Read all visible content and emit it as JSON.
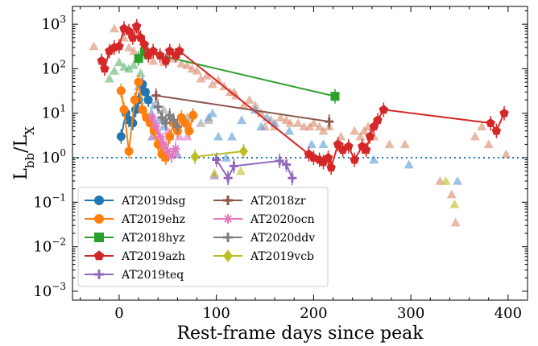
{
  "chart_data": {
    "type": "scatter",
    "xlabel": "Rest-frame days since peak",
    "ylabel_main": "L",
    "ylabel_sub": "bb",
    "ylabel_main2": "/L",
    "ylabel_sub2": "X",
    "xlim": [
      -48,
      420
    ],
    "ylim_log10": [
      -3.2,
      3.4
    ],
    "log_y": true,
    "grid": false,
    "legend_position": "lower-left",
    "x_ticks": [
      0,
      100,
      200,
      300,
      400
    ],
    "x_tick_labels": [
      "0",
      "100",
      "200",
      "300",
      "400"
    ],
    "y_tick_exponents": [
      -3,
      -2,
      -1,
      0,
      1,
      2,
      3
    ],
    "y_tick_base": "10",
    "y_tick_labels_exp": [
      "−3",
      "−2",
      "−1",
      "0",
      "1",
      "2",
      "3"
    ],
    "reference_line": {
      "y": 1,
      "style": "dotted",
      "color": "#1f77b4"
    },
    "series": [
      {
        "name": "AT2019dsg",
        "color": "#1f77b4",
        "marker": "circle",
        "x": [
          2,
          7,
          10,
          14,
          17,
          20,
          24,
          27,
          30
        ],
        "y": [
          3,
          10,
          7,
          6,
          12,
          20,
          45,
          30,
          20
        ]
      },
      {
        "name": "AT2019ehz",
        "color": "#ff7f0e",
        "marker": "circle",
        "x": [
          2,
          5,
          10,
          16,
          20,
          24,
          28,
          32,
          36,
          40,
          44,
          48,
          52,
          56,
          60,
          64,
          68,
          72,
          76
        ],
        "y": [
          32,
          12,
          1.4,
          20,
          50,
          12,
          8,
          6,
          4,
          2,
          1.2,
          1.0,
          3,
          6,
          4,
          8,
          6,
          4,
          9
        ]
      },
      {
        "name": "AT2018hyz",
        "color": "#2ca02c",
        "marker": "square",
        "x": [
          20,
          26,
          222
        ],
        "y": [
          170,
          240,
          24
        ]
      },
      {
        "name": "AT2019azh",
        "color": "#d62728",
        "marker": "pentagon",
        "x": [
          -18,
          -15,
          -10,
          -5,
          0,
          5,
          10,
          14,
          18,
          22,
          26,
          30,
          35,
          42,
          48,
          52,
          58,
          62,
          195,
          200,
          206,
          210,
          215,
          218,
          225,
          230,
          236,
          242,
          250,
          254,
          258,
          262,
          266,
          272,
          382,
          388,
          396
        ],
        "y": [
          150,
          100,
          250,
          300,
          320,
          800,
          700,
          500,
          900,
          500,
          350,
          200,
          250,
          200,
          150,
          250,
          200,
          250,
          1.2,
          1.0,
          0.9,
          0.8,
          1.0,
          0.6,
          2.0,
          1.5,
          1.8,
          0.9,
          1.8,
          1.5,
          3.0,
          5.0,
          7.0,
          12.0,
          6.0,
          4.0,
          10.0
        ]
      },
      {
        "name": "AT2019teq",
        "color": "#9467bd",
        "marker": "plus",
        "x": [
          100,
          112,
          118,
          165,
          172,
          178
        ],
        "y": [
          0.9,
          0.35,
          0.65,
          0.85,
          0.7,
          0.35
        ]
      },
      {
        "name": "AT2018zr",
        "color": "#8c564b",
        "marker": "plus",
        "x": [
          38,
          216
        ],
        "y": [
          25,
          6.5
        ]
      },
      {
        "name": "AT2020ocn",
        "color": "#e377c2",
        "marker": "asterisk",
        "x": [
          34,
          38,
          42,
          46,
          50,
          54,
          58
        ],
        "y": [
          8,
          5,
          3,
          2,
          1.4,
          1.1,
          1.6
        ]
      },
      {
        "name": "AT2020ddv",
        "color": "#7f7f7f",
        "marker": "plus",
        "x": [
          40,
          44,
          48,
          52,
          56,
          60
        ],
        "y": [
          14,
          8,
          6,
          9,
          7,
          5
        ]
      },
      {
        "name": "AT2019vcb",
        "color": "#bcbd22",
        "marker": "diamond",
        "x": [
          78,
          128
        ],
        "y": [
          1.05,
          1.4
        ]
      }
    ],
    "upper_limits": [
      {
        "color": "#d98b6a",
        "x": [
          -26,
          -5,
          5,
          10,
          15,
          20,
          25,
          30,
          35,
          46,
          56,
          64,
          70,
          75,
          80,
          84,
          90,
          96,
          102,
          108,
          114,
          118,
          120,
          128,
          134,
          140,
          146,
          150,
          156,
          160,
          166,
          172,
          176,
          184,
          190,
          196,
          200,
          206,
          210,
          216,
          228,
          242,
          248,
          252,
          256,
          262,
          278,
          294,
          330,
          342,
          346,
          366,
          373,
          380,
          398
        ],
        "y": [
          320,
          800,
          500,
          300,
          250,
          600,
          400,
          200,
          150,
          140,
          170,
          130,
          120,
          100,
          90,
          60,
          70,
          45,
          55,
          40,
          30,
          30,
          25,
          15,
          20,
          15,
          10,
          5,
          7,
          5,
          8,
          7,
          6,
          6,
          5,
          5,
          6,
          5,
          4,
          5,
          3,
          4,
          3,
          4,
          5,
          3,
          2,
          2,
          0.3,
          0.15,
          0.035,
          3,
          5,
          2,
          1.2
        ]
      },
      {
        "color": "#5a9bd5",
        "x": [
          20,
          25,
          30,
          33,
          36,
          41,
          46,
          52,
          92,
          96,
          102,
          110,
          116,
          126,
          140,
          146,
          152,
          160,
          175,
          198,
          210,
          262,
          298,
          348
        ],
        "y": [
          40,
          30,
          20,
          10,
          15,
          7,
          5,
          3,
          8,
          10,
          3,
          1.0,
          3,
          7,
          12,
          5,
          8,
          6,
          4,
          2,
          2,
          0.9,
          0.7,
          0.3
        ]
      },
      {
        "color": "#5bb36a",
        "x": [
          -10,
          -5,
          0,
          5,
          10,
          15,
          22
        ],
        "y": [
          60,
          90,
          140,
          110,
          100,
          120,
          80
        ]
      },
      {
        "color": "#9c9c9c",
        "x": [
          46,
          56,
          70,
          76,
          84,
          92
        ],
        "y": [
          12,
          6,
          8,
          10,
          6,
          7
        ]
      },
      {
        "color": "#e377c2",
        "x": [
          50,
          62,
          70
        ],
        "y": [
          4,
          3,
          3
        ]
      },
      {
        "color": "#9467bd",
        "x": [
          34,
          44,
          60,
          98
        ],
        "y": [
          3,
          1.5,
          1.2,
          0.4
        ]
      },
      {
        "color": "#bcbd22",
        "x": [
          98,
          125,
          336,
          345
        ],
        "y": [
          0.45,
          0.5,
          0.3,
          0.09
        ]
      }
    ]
  }
}
